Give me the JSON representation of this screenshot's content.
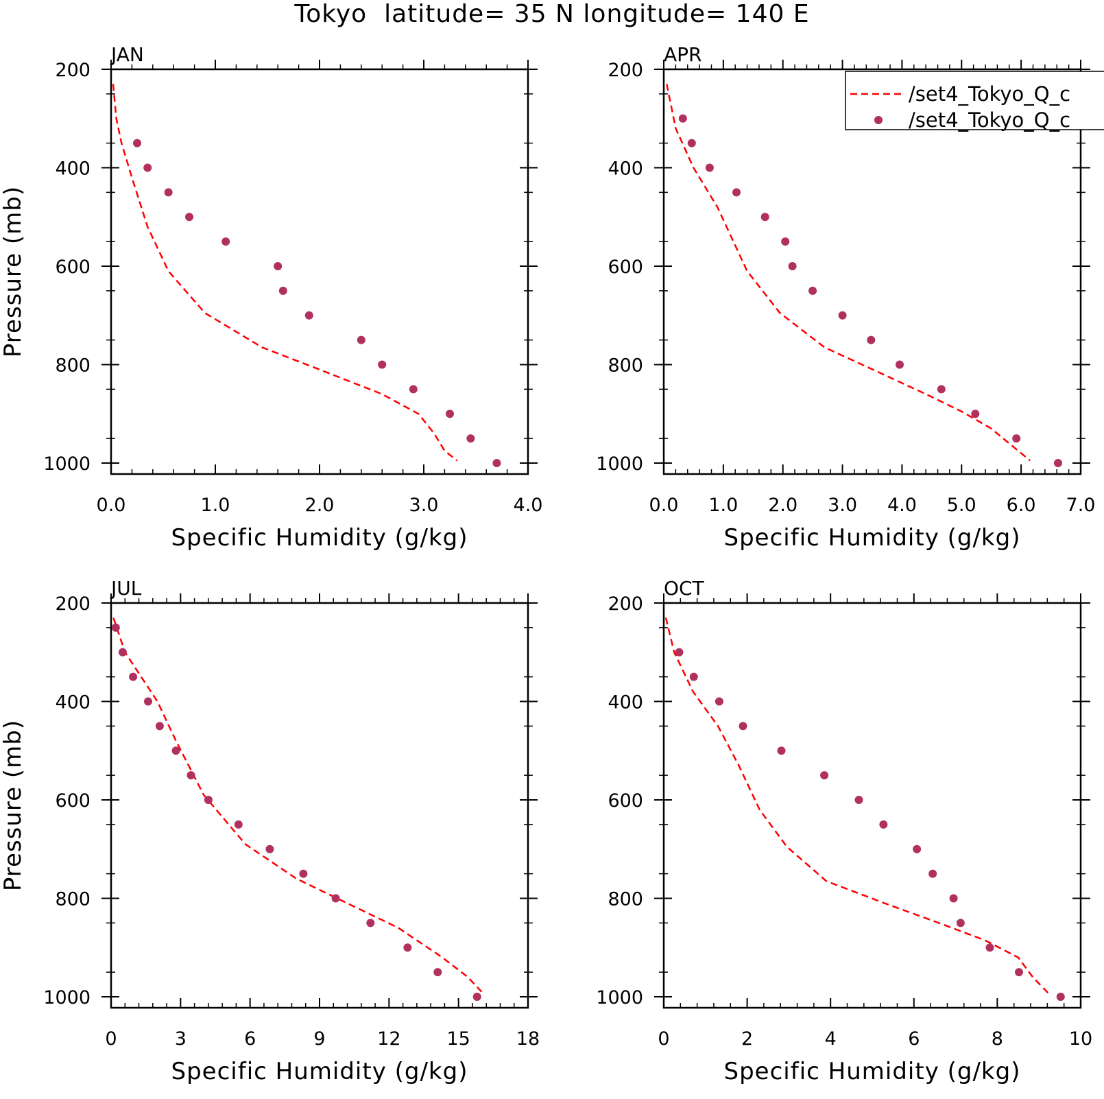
{
  "title": "Tokyo  latitude= 35 N longitude= 140 E",
  "legend": {
    "entries": [
      {
        "label": "/set4_Tokyo_Q_c",
        "style": "dashed-line",
        "color": "#ff0000"
      },
      {
        "label": "/set4_Tokyo_Q_c",
        "style": "dots",
        "color": "#b03060"
      }
    ]
  },
  "colors": {
    "line": "#ff0000",
    "dots": "#b03060"
  },
  "chart_data": [
    {
      "type": "line",
      "panel": "JAN",
      "xlabel": "Specific Humidity (g/kg)",
      "ylabel": "Pressure (mb)",
      "xlim": [
        0,
        4
      ],
      "ylim": [
        200,
        1000
      ],
      "y_reversed": true,
      "xticks": [
        "0.0",
        "1.0",
        "2.0",
        "3.0",
        "4.0"
      ],
      "yticks": [
        "200",
        "400",
        "600",
        "800",
        "1000"
      ],
      "series": [
        {
          "style": "line",
          "points": [
            [
              0.02,
              230
            ],
            [
              0.05,
              300
            ],
            [
              0.1,
              350
            ],
            [
              0.2,
              420
            ],
            [
              0.35,
              520
            ],
            [
              0.55,
              610
            ],
            [
              0.9,
              695
            ],
            [
              1.45,
              765
            ],
            [
              2.0,
              810
            ],
            [
              2.6,
              860
            ],
            [
              2.95,
              900
            ],
            [
              3.1,
              940
            ],
            [
              3.2,
              975
            ],
            [
              3.32,
              995
            ]
          ]
        },
        {
          "style": "dots",
          "points": [
            [
              0.25,
              350
            ],
            [
              0.35,
              400
            ],
            [
              0.55,
              450
            ],
            [
              0.75,
              500
            ],
            [
              1.1,
              550
            ],
            [
              1.6,
              600
            ],
            [
              1.65,
              650
            ],
            [
              1.9,
              700
            ],
            [
              2.4,
              750
            ],
            [
              2.6,
              800
            ],
            [
              2.9,
              850
            ],
            [
              3.25,
              900
            ],
            [
              3.45,
              950
            ],
            [
              3.7,
              1000
            ]
          ]
        }
      ]
    },
    {
      "type": "line",
      "panel": "APR",
      "xlabel": "Specific Humidity (g/kg)",
      "ylabel": "",
      "xlim": [
        0,
        7
      ],
      "ylim": [
        200,
        1000
      ],
      "y_reversed": true,
      "xticks": [
        "0.0",
        "1.0",
        "2.0",
        "3.0",
        "4.0",
        "5.0",
        "6.0",
        "7.0"
      ],
      "yticks": [
        "200",
        "400",
        "600",
        "800",
        "1000"
      ],
      "series": [
        {
          "style": "line",
          "points": [
            [
              0.05,
              230
            ],
            [
              0.2,
              320
            ],
            [
              0.5,
              400
            ],
            [
              0.9,
              480
            ],
            [
              1.4,
              610
            ],
            [
              1.95,
              695
            ],
            [
              2.7,
              765
            ],
            [
              3.6,
              815
            ],
            [
              4.4,
              860
            ],
            [
              5.0,
              895
            ],
            [
              5.5,
              930
            ],
            [
              5.85,
              965
            ],
            [
              6.15,
              995
            ]
          ]
        },
        {
          "style": "dots",
          "points": [
            [
              0.32,
              300
            ],
            [
              0.47,
              350
            ],
            [
              0.77,
              400
            ],
            [
              1.22,
              450
            ],
            [
              1.7,
              500
            ],
            [
              2.04,
              550
            ],
            [
              2.16,
              600
            ],
            [
              2.5,
              650
            ],
            [
              3.0,
              700
            ],
            [
              3.48,
              750
            ],
            [
              3.96,
              800
            ],
            [
              4.66,
              850
            ],
            [
              5.23,
              900
            ],
            [
              5.92,
              950
            ],
            [
              6.62,
              1000
            ]
          ]
        }
      ]
    },
    {
      "type": "line",
      "panel": "JUL",
      "xlabel": "Specific Humidity (g/kg)",
      "ylabel": "Pressure (mb)",
      "xlim": [
        0,
        18
      ],
      "ylim": [
        200,
        1000
      ],
      "y_reversed": true,
      "xticks": [
        "0",
        "3",
        "6",
        "9",
        "12",
        "15",
        "18"
      ],
      "yticks": [
        "200",
        "400",
        "600",
        "800",
        "1000"
      ],
      "series": [
        {
          "style": "line",
          "points": [
            [
              0.1,
              230
            ],
            [
              0.6,
              300
            ],
            [
              1.3,
              350
            ],
            [
              2.0,
              400
            ],
            [
              2.8,
              480
            ],
            [
              4.0,
              590
            ],
            [
              5.8,
              690
            ],
            [
              8.0,
              760
            ],
            [
              10.2,
              810
            ],
            [
              12.4,
              860
            ],
            [
              14.3,
              920
            ],
            [
              15.4,
              960
            ],
            [
              16.0,
              990
            ]
          ]
        },
        {
          "style": "dots",
          "points": [
            [
              0.2,
              250
            ],
            [
              0.5,
              300
            ],
            [
              0.95,
              350
            ],
            [
              1.6,
              400
            ],
            [
              2.1,
              450
            ],
            [
              2.8,
              500
            ],
            [
              3.45,
              550
            ],
            [
              4.2,
              600
            ],
            [
              5.5,
              650
            ],
            [
              6.85,
              700
            ],
            [
              8.3,
              750
            ],
            [
              9.7,
              800
            ],
            [
              11.2,
              850
            ],
            [
              12.8,
              900
            ],
            [
              14.1,
              950
            ],
            [
              15.8,
              1000
            ]
          ]
        }
      ]
    },
    {
      "type": "line",
      "panel": "OCT",
      "xlabel": "Specific Humidity (g/kg)",
      "ylabel": "",
      "xlim": [
        0,
        10
      ],
      "ylim": [
        200,
        1000
      ],
      "y_reversed": true,
      "xticks": [
        "0",
        "2",
        "4",
        "6",
        "8",
        "10"
      ],
      "yticks": [
        "200",
        "400",
        "600",
        "800",
        "1000"
      ],
      "series": [
        {
          "style": "line",
          "points": [
            [
              0.05,
              230
            ],
            [
              0.25,
              300
            ],
            [
              0.7,
              380
            ],
            [
              1.3,
              450
            ],
            [
              1.8,
              530
            ],
            [
              2.3,
              620
            ],
            [
              2.95,
              695
            ],
            [
              3.9,
              765
            ],
            [
              5.3,
              810
            ],
            [
              6.6,
              850
            ],
            [
              7.7,
              885
            ],
            [
              8.5,
              920
            ],
            [
              8.85,
              960
            ],
            [
              9.25,
              995
            ]
          ]
        },
        {
          "style": "dots",
          "points": [
            [
              0.37,
              300
            ],
            [
              0.72,
              350
            ],
            [
              1.33,
              400
            ],
            [
              1.9,
              450
            ],
            [
              2.82,
              500
            ],
            [
              3.85,
              550
            ],
            [
              4.68,
              600
            ],
            [
              5.27,
              650
            ],
            [
              6.07,
              700
            ],
            [
              6.45,
              750
            ],
            [
              6.95,
              800
            ],
            [
              7.12,
              850
            ],
            [
              7.82,
              900
            ],
            [
              8.52,
              950
            ],
            [
              9.52,
              1000
            ]
          ]
        }
      ]
    }
  ]
}
